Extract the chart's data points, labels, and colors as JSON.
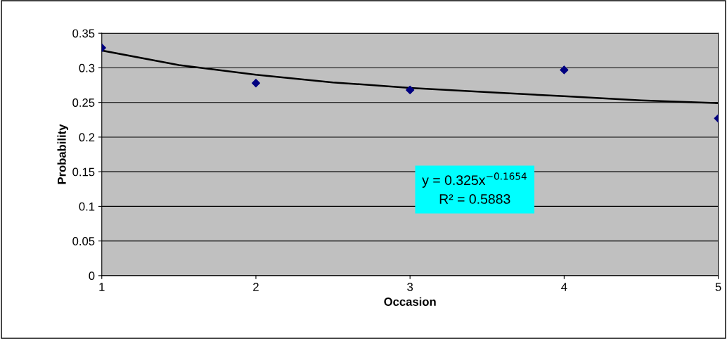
{
  "chart_data": {
    "type": "scatter",
    "xlabel": "Occasion",
    "ylabel": "Probability",
    "series": [
      {
        "color": "#000080",
        "marker": "diamond",
        "x": [
          1,
          2,
          3,
          4,
          5
        ],
        "values": [
          0.329,
          0.278,
          0.268,
          0.297,
          0.227
        ]
      },
      {
        "type": "line",
        "color": "#000000",
        "marker": "none",
        "line_style": "solid",
        "x": [
          1,
          1.5,
          2,
          2.5,
          3,
          3.5,
          4,
          4.5,
          5
        ],
        "values": [
          0.325,
          0.304,
          0.29,
          0.279,
          0.271,
          0.265,
          0.259,
          0.253,
          0.249
        ]
      }
    ],
    "xlim": [
      1,
      5
    ],
    "xticks": [
      1,
      2,
      3,
      4,
      5
    ],
    "ylim": [
      0,
      0.35
    ],
    "yticks": [
      0,
      0.05,
      0.1,
      0.15,
      0.2,
      0.25,
      0.3,
      0.35
    ],
    "grid": "y",
    "annotations": [
      "y = 0.325x$^{−0.1654}$\nR² = 0.5883"
    ]
  }
}
